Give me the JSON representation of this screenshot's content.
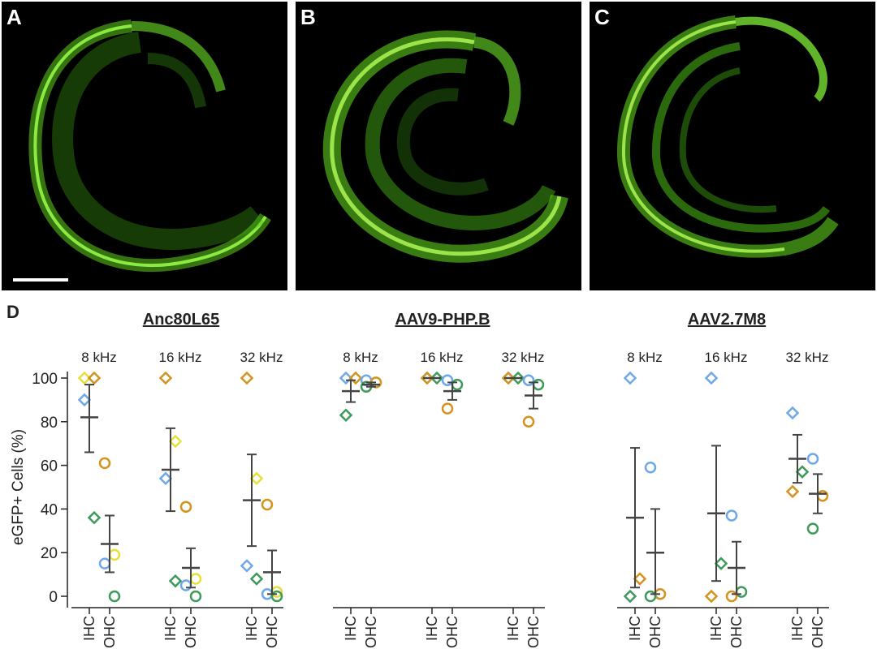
{
  "panels": [
    {
      "letter": "A"
    },
    {
      "letter": "B"
    },
    {
      "letter": "C"
    }
  ],
  "chart_data": {
    "type": "scatter",
    "panel_letter": "D",
    "ylabel": "eGFP+ Cells (%)",
    "ylim": [
      0,
      100
    ],
    "yticks": [
      0,
      20,
      40,
      60,
      80,
      100
    ],
    "cell_types": [
      "IHC",
      "OHC"
    ],
    "frequencies": [
      "8 kHz",
      "16 kHz",
      "32 kHz"
    ],
    "colors": {
      "yellow": "#e8e03a",
      "orange": "#d4921e",
      "blue": "#6fa8e8",
      "green": "#3e9a5a",
      "stat": "#444444"
    },
    "groups": [
      {
        "title": "Anc80L65",
        "conditions": [
          {
            "freq": "8 kHz",
            "IHC": {
              "points": [
                {
                  "color": "yellow",
                  "value": 100
                },
                {
                  "color": "orange",
                  "value": 100
                },
                {
                  "color": "blue",
                  "value": 90
                },
                {
                  "color": "green",
                  "value": 36
                }
              ],
              "mean": 82,
              "err": [
                66,
                97
              ]
            },
            "OHC": {
              "points": [
                {
                  "color": "orange",
                  "value": 61
                },
                {
                  "color": "yellow",
                  "value": 19
                },
                {
                  "color": "blue",
                  "value": 15
                },
                {
                  "color": "green",
                  "value": 0
                }
              ],
              "mean": 24,
              "err": [
                11,
                37
              ]
            }
          },
          {
            "freq": "16 kHz",
            "IHC": {
              "points": [
                {
                  "color": "orange",
                  "value": 100
                },
                {
                  "color": "yellow",
                  "value": 71
                },
                {
                  "color": "blue",
                  "value": 54
                },
                {
                  "color": "green",
                  "value": 7
                }
              ],
              "mean": 58,
              "err": [
                39,
                77
              ]
            },
            "OHC": {
              "points": [
                {
                  "color": "orange",
                  "value": 41
                },
                {
                  "color": "yellow",
                  "value": 8
                },
                {
                  "color": "blue",
                  "value": 5
                },
                {
                  "color": "green",
                  "value": 0
                }
              ],
              "mean": 13,
              "err": [
                4,
                22
              ]
            }
          },
          {
            "freq": "32 kHz",
            "IHC": {
              "points": [
                {
                  "color": "orange",
                  "value": 100
                },
                {
                  "color": "yellow",
                  "value": 54
                },
                {
                  "color": "blue",
                  "value": 14
                },
                {
                  "color": "green",
                  "value": 8
                }
              ],
              "mean": 44,
              "err": [
                23,
                65
              ]
            },
            "OHC": {
              "points": [
                {
                  "color": "orange",
                  "value": 42
                },
                {
                  "color": "yellow",
                  "value": 2
                },
                {
                  "color": "blue",
                  "value": 1
                },
                {
                  "color": "green",
                  "value": 0
                }
              ],
              "mean": 11,
              "err": [
                1,
                21
              ]
            }
          }
        ]
      },
      {
        "title": "AAV9-PHP.B",
        "conditions": [
          {
            "freq": "8 kHz",
            "IHC": {
              "points": [
                {
                  "color": "blue",
                  "value": 100
                },
                {
                  "color": "orange",
                  "value": 100
                },
                {
                  "color": "green",
                  "value": 83
                }
              ],
              "mean": 94,
              "err": [
                89,
                99
              ]
            },
            "OHC": {
              "points": [
                {
                  "color": "blue",
                  "value": 99
                },
                {
                  "color": "orange",
                  "value": 98
                },
                {
                  "color": "green",
                  "value": 96
                }
              ],
              "mean": 97,
              "err": [
                96,
                98
              ]
            }
          },
          {
            "freq": "16 kHz",
            "IHC": {
              "points": [
                {
                  "color": "blue",
                  "value": 100
                },
                {
                  "color": "green",
                  "value": 100
                },
                {
                  "color": "orange",
                  "value": 100
                }
              ],
              "mean": 100,
              "err": [
                100,
                100
              ]
            },
            "OHC": {
              "points": [
                {
                  "color": "blue",
                  "value": 99
                },
                {
                  "color": "green",
                  "value": 97
                },
                {
                  "color": "orange",
                  "value": 86
                }
              ],
              "mean": 94,
              "err": [
                90,
                98
              ]
            }
          },
          {
            "freq": "32 kHz",
            "IHC": {
              "points": [
                {
                  "color": "blue",
                  "value": 100
                },
                {
                  "color": "green",
                  "value": 100
                },
                {
                  "color": "orange",
                  "value": 100
                }
              ],
              "mean": 100,
              "err": [
                100,
                100
              ]
            },
            "OHC": {
              "points": [
                {
                  "color": "blue",
                  "value": 99
                },
                {
                  "color": "green",
                  "value": 97
                },
                {
                  "color": "orange",
                  "value": 80
                }
              ],
              "mean": 92,
              "err": [
                86,
                98
              ]
            }
          }
        ]
      },
      {
        "title": "AAV2.7M8",
        "conditions": [
          {
            "freq": "8 kHz",
            "IHC": {
              "points": [
                {
                  "color": "blue",
                  "value": 100
                },
                {
                  "color": "orange",
                  "value": 8
                },
                {
                  "color": "green",
                  "value": 0
                }
              ],
              "mean": 36,
              "err": [
                4,
                68
              ]
            },
            "OHC": {
              "points": [
                {
                  "color": "blue",
                  "value": 59
                },
                {
                  "color": "orange",
                  "value": 1
                },
                {
                  "color": "green",
                  "value": 0
                }
              ],
              "mean": 20,
              "err": [
                1,
                40
              ]
            }
          },
          {
            "freq": "16 kHz",
            "IHC": {
              "points": [
                {
                  "color": "blue",
                  "value": 100
                },
                {
                  "color": "green",
                  "value": 15
                },
                {
                  "color": "orange",
                  "value": 0
                }
              ],
              "mean": 38,
              "err": [
                7,
                69
              ]
            },
            "OHC": {
              "points": [
                {
                  "color": "blue",
                  "value": 37
                },
                {
                  "color": "green",
                  "value": 2
                },
                {
                  "color": "orange",
                  "value": 0
                }
              ],
              "mean": 13,
              "err": [
                1,
                25
              ]
            }
          },
          {
            "freq": "32 kHz",
            "IHC": {
              "points": [
                {
                  "color": "blue",
                  "value": 84
                },
                {
                  "color": "green",
                  "value": 57
                },
                {
                  "color": "orange",
                  "value": 48
                }
              ],
              "mean": 63,
              "err": [
                52,
                74
              ]
            },
            "OHC": {
              "points": [
                {
                  "color": "blue",
                  "value": 63
                },
                {
                  "color": "orange",
                  "value": 46
                },
                {
                  "color": "green",
                  "value": 31
                }
              ],
              "mean": 47,
              "err": [
                38,
                56
              ]
            }
          }
        ]
      }
    ]
  }
}
